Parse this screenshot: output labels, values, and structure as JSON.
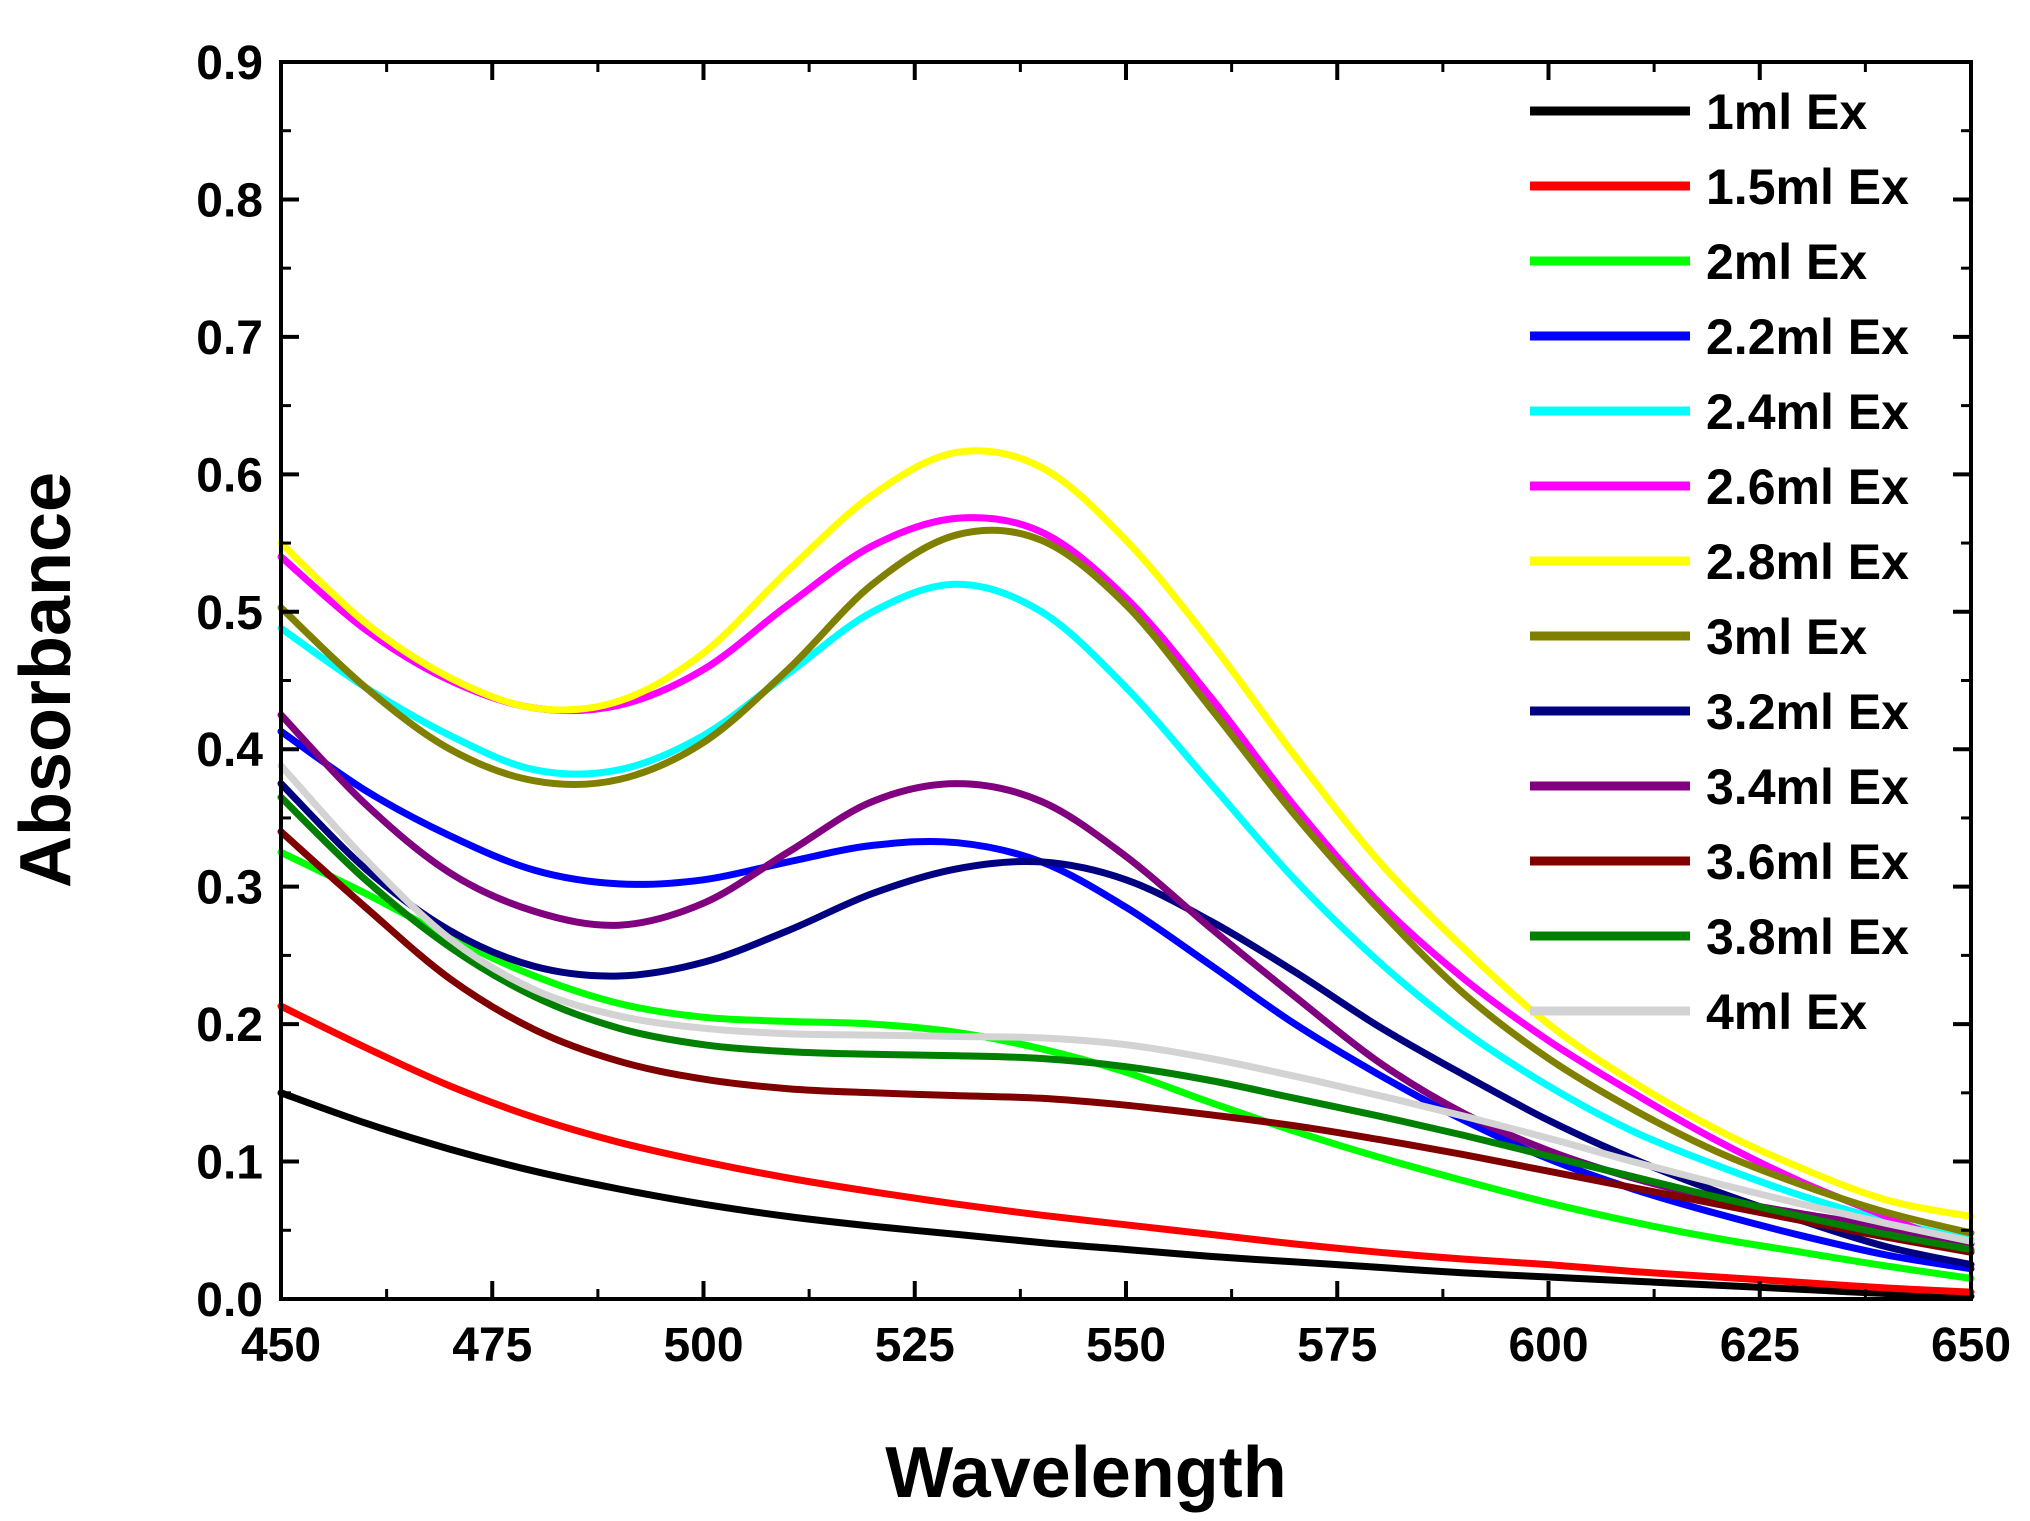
{
  "chart_data": {
    "type": "line",
    "title": "",
    "xlabel": "Wavelength",
    "ylabel": "Absorbance",
    "xlim": [
      450,
      650
    ],
    "ylim": [
      0.0,
      0.9
    ],
    "x_ticks": [
      "450",
      "475",
      "500",
      "525",
      "550",
      "575",
      "600",
      "625",
      "650"
    ],
    "y_ticks": [
      "0.0",
      "0.1",
      "0.2",
      "0.3",
      "0.4",
      "0.5",
      "0.6",
      "0.7",
      "0.8",
      "0.9"
    ],
    "grid": false,
    "legend_position": "top-right",
    "x": [
      450,
      460,
      470,
      480,
      490,
      500,
      510,
      520,
      530,
      540,
      550,
      560,
      570,
      580,
      590,
      600,
      610,
      620,
      630,
      640,
      650
    ],
    "series": [
      {
        "name": "1ml Ex",
        "color": "#000000",
        "values": [
          0.15,
          0.128,
          0.109,
          0.093,
          0.08,
          0.069,
          0.06,
          0.053,
          0.047,
          0.041,
          0.036,
          0.031,
          0.027,
          0.023,
          0.019,
          0.016,
          0.013,
          0.01,
          0.007,
          0.004,
          0.002
        ]
      },
      {
        "name": "1.5ml Ex",
        "color": "#ff0000",
        "values": [
          0.213,
          0.183,
          0.155,
          0.132,
          0.114,
          0.1,
          0.088,
          0.078,
          0.069,
          0.061,
          0.054,
          0.047,
          0.04,
          0.034,
          0.029,
          0.025,
          0.02,
          0.016,
          0.012,
          0.008,
          0.005
        ]
      },
      {
        "name": "2ml Ex",
        "color": "#00ff00",
        "values": [
          0.325,
          0.295,
          0.263,
          0.235,
          0.215,
          0.205,
          0.202,
          0.2,
          0.194,
          0.182,
          0.165,
          0.143,
          0.122,
          0.103,
          0.086,
          0.07,
          0.056,
          0.044,
          0.034,
          0.024,
          0.015
        ]
      },
      {
        "name": "2.2ml Ex",
        "color": "#0000ff",
        "values": [
          0.413,
          0.37,
          0.337,
          0.312,
          0.302,
          0.305,
          0.318,
          0.33,
          0.332,
          0.318,
          0.285,
          0.243,
          0.2,
          0.163,
          0.13,
          0.102,
          0.08,
          0.062,
          0.046,
          0.032,
          0.022
        ]
      },
      {
        "name": "2.4ml Ex",
        "color": "#00ffff",
        "values": [
          0.488,
          0.445,
          0.41,
          0.385,
          0.385,
          0.41,
          0.455,
          0.5,
          0.52,
          0.5,
          0.445,
          0.375,
          0.305,
          0.245,
          0.195,
          0.155,
          0.122,
          0.097,
          0.075,
          0.057,
          0.043
        ]
      },
      {
        "name": "2.6ml Ex",
        "color": "#ff00ff",
        "values": [
          0.54,
          0.487,
          0.45,
          0.43,
          0.432,
          0.458,
          0.505,
          0.548,
          0.568,
          0.558,
          0.51,
          0.438,
          0.358,
          0.288,
          0.233,
          0.188,
          0.15,
          0.115,
          0.085,
          0.06,
          0.035
        ]
      },
      {
        "name": "2.8ml Ex",
        "color": "#ffff00",
        "values": [
          0.55,
          0.492,
          0.452,
          0.43,
          0.435,
          0.47,
          0.53,
          0.585,
          0.616,
          0.605,
          0.552,
          0.478,
          0.395,
          0.318,
          0.255,
          0.2,
          0.158,
          0.123,
          0.095,
          0.072,
          0.06
        ]
      },
      {
        "name": "3ml Ex",
        "color": "#808000",
        "values": [
          0.503,
          0.445,
          0.4,
          0.377,
          0.378,
          0.405,
          0.458,
          0.52,
          0.556,
          0.552,
          0.505,
          0.43,
          0.352,
          0.283,
          0.222,
          0.175,
          0.138,
          0.107,
          0.083,
          0.063,
          0.048
        ]
      },
      {
        "name": "3.2ml Ex",
        "color": "#000080",
        "values": [
          0.375,
          0.313,
          0.268,
          0.242,
          0.235,
          0.245,
          0.268,
          0.295,
          0.313,
          0.318,
          0.305,
          0.275,
          0.238,
          0.198,
          0.163,
          0.13,
          0.102,
          0.078,
          0.057,
          0.038,
          0.025
        ]
      },
      {
        "name": "3.4ml Ex",
        "color": "#800080",
        "values": [
          0.425,
          0.36,
          0.31,
          0.282,
          0.272,
          0.288,
          0.325,
          0.362,
          0.375,
          0.362,
          0.322,
          0.27,
          0.22,
          0.172,
          0.135,
          0.108,
          0.088,
          0.073,
          0.062,
          0.052,
          0.04
        ]
      },
      {
        "name": "3.6ml Ex",
        "color": "#800000",
        "values": [
          0.34,
          0.285,
          0.233,
          0.196,
          0.173,
          0.16,
          0.153,
          0.15,
          0.148,
          0.146,
          0.141,
          0.134,
          0.126,
          0.116,
          0.105,
          0.093,
          0.081,
          0.069,
          0.057,
          0.045,
          0.034
        ]
      },
      {
        "name": "3.8ml Ex",
        "color": "#008000",
        "values": [
          0.365,
          0.305,
          0.256,
          0.22,
          0.197,
          0.185,
          0.18,
          0.178,
          0.177,
          0.175,
          0.169,
          0.159,
          0.146,
          0.133,
          0.119,
          0.104,
          0.089,
          0.074,
          0.06,
          0.047,
          0.036
        ]
      },
      {
        "name": "4ml Ex",
        "color": "#d3d3d3",
        "values": [
          0.388,
          0.32,
          0.262,
          0.225,
          0.206,
          0.197,
          0.193,
          0.192,
          0.191,
          0.19,
          0.185,
          0.175,
          0.162,
          0.148,
          0.133,
          0.117,
          0.1,
          0.084,
          0.069,
          0.055,
          0.042
        ]
      }
    ]
  }
}
